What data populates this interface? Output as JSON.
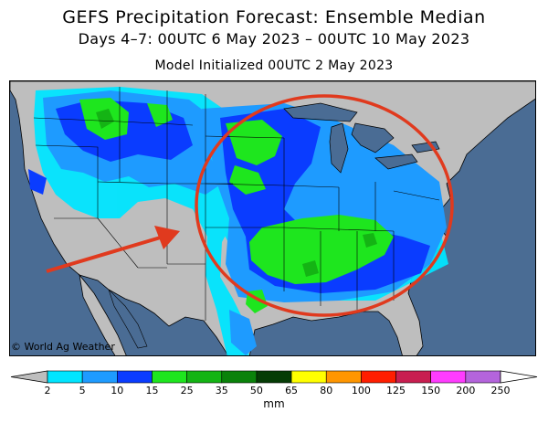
{
  "header": {
    "title": "GEFS Precipitation Forecast: Ensemble Median",
    "subtitle": "Days 4–7: 00UTC 6 May 2023 – 00UTC 10 May 2023",
    "init": "Model Initialized 00UTC 2 May 2023"
  },
  "map": {
    "credit": "© World Ag Weather",
    "annotation": {
      "ellipse_color": "#e03a1e",
      "arrow_color": "#e03a1e"
    },
    "colors": {
      "ocean": "#4a6c94",
      "land_dry": "#bebebe",
      "outline": "#000000"
    }
  },
  "legend": {
    "unit": "mm",
    "ticks": [
      "2",
      "5",
      "10",
      "15",
      "25",
      "35",
      "50",
      "65",
      "80",
      "100",
      "125",
      "150",
      "200",
      "250"
    ],
    "colors": [
      "#00e5ff",
      "#1e9bff",
      "#0a3cff",
      "#1ee61e",
      "#14b414",
      "#0a820a",
      "#053c05",
      "#ffff00",
      "#ff9600",
      "#ff1e00",
      "#c81e50",
      "#ff3cff",
      "#b464dc"
    ],
    "under_color": "#bebebe",
    "over_color": "#ffffff"
  }
}
